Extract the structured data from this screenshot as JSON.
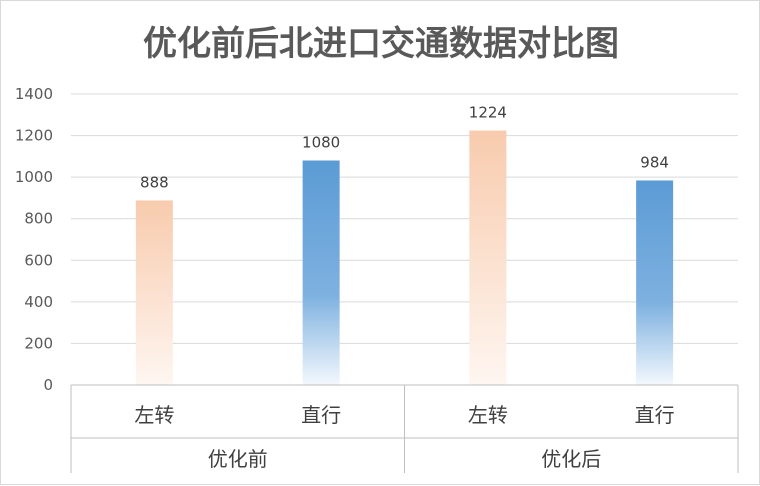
{
  "chart_data": {
    "type": "bar",
    "title": "优化前后北进口交通数据对比图",
    "groups": [
      {
        "name": "优化前",
        "bars": [
          {
            "category": "左转",
            "value": 888,
            "color": "orange-gradient"
          },
          {
            "category": "直行",
            "value": 1080,
            "color": "blue-gradient"
          }
        ]
      },
      {
        "name": "优化后",
        "bars": [
          {
            "category": "左转",
            "value": 1224,
            "color": "orange-gradient"
          },
          {
            "category": "直行",
            "value": 984,
            "color": "blue-gradient"
          }
        ]
      }
    ],
    "ylim": [
      0,
      1400
    ],
    "yticks": [
      "0",
      "200",
      "400",
      "600",
      "800",
      "1000",
      "1200",
      "1400"
    ],
    "grid": true,
    "legend": "none",
    "colors": {
      "orange_top": "#f8cbad",
      "orange_bottom": "#fdf0e8",
      "blue_top": "#5b9bd5",
      "blue_bottom": "#eaf2fb",
      "gridline": "#d9d9d9",
      "axis_text": "#595959"
    }
  }
}
